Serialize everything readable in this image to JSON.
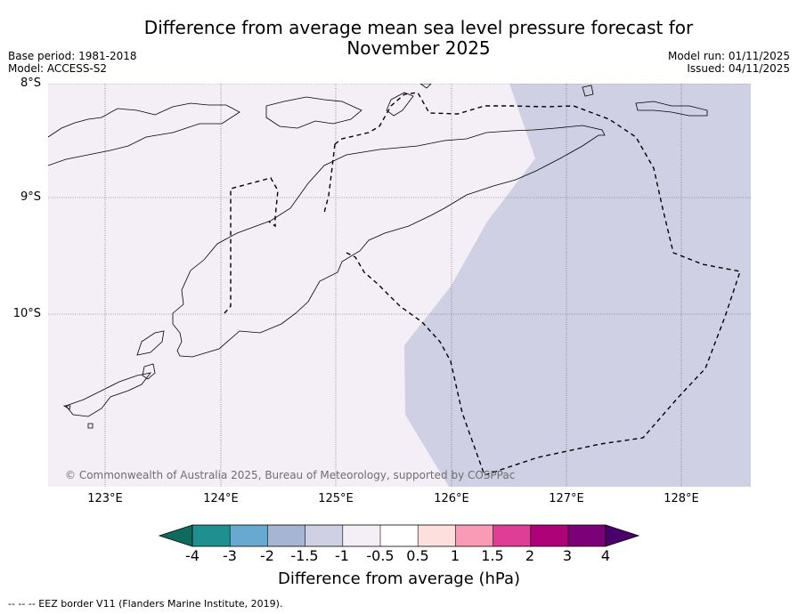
{
  "title": "Difference from average mean sea level pressure forecast for November 2025",
  "title_line1": "Difference from average mean sea level pressure forecast for",
  "title_line2": "November 2025",
  "base_period": "Base period: 1981-2018",
  "model": "Model: ACCESS-S2",
  "model_run": "Model run: 01/11/2025",
  "issued": "Issued: 04/11/2025",
  "map": {
    "lat_labels": [
      "8°S",
      "9°S",
      "10°S"
    ],
    "lon_labels": [
      "123°E",
      "124°E",
      "125°E",
      "126°E",
      "127°E",
      "128°E"
    ],
    "copyright": "© Commonwealth of Australia 2025, Bureau of Meteorology, supported by COSPPac",
    "colors": {
      "light_region": "#f4eef6",
      "darker_region": "#d0d0e4",
      "coastline": "#000000",
      "eez": "#000000",
      "grid": "#555555"
    }
  },
  "colorbar": {
    "title": "Difference from average (hPa)",
    "tick_labels": [
      "-4",
      "-3",
      "-2",
      "-1.5",
      "-1",
      "-0.5",
      "0.5",
      "1",
      "1.5",
      "2",
      "3",
      "4"
    ],
    "colors": [
      "#0f6b5e",
      "#1f8f8f",
      "#68a9cf",
      "#a6b6d2",
      "#d0d0e4",
      "#f4eef6",
      "#ffffff",
      "#fde0dd",
      "#f99ab7",
      "#de3e96",
      "#ae0279",
      "#7a0177",
      "#49006a"
    ]
  },
  "footer": "--  --  -- EEZ border V11 (Flanders Marine Institute, 2019)."
}
